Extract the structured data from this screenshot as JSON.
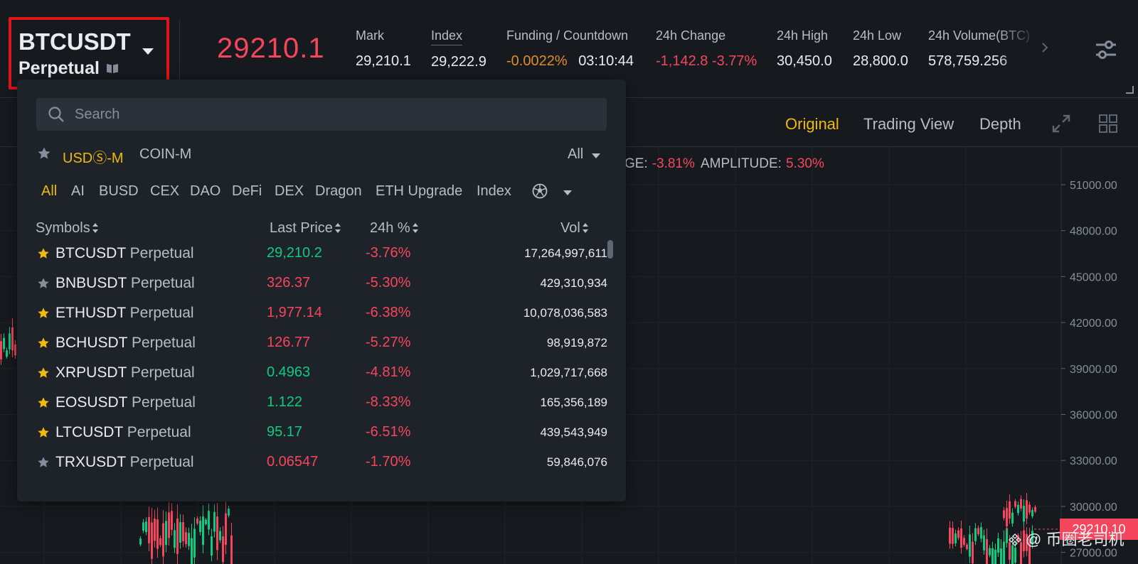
{
  "header": {
    "symbol": "BTCUSDT",
    "contract_type": "Perpetual",
    "last_price": "29210.1",
    "stats": [
      {
        "label": "Mark",
        "value": "29,210.1"
      },
      {
        "label": "Index",
        "value": "29,222.9"
      },
      {
        "label": "Funding / Countdown",
        "rate": "-0.0022%",
        "countdown": "03:10:44"
      },
      {
        "label": "24h Change",
        "value": "-1,142.8 -3.77%"
      },
      {
        "label": "24h High",
        "value": "30,450.0"
      },
      {
        "label": "24h Low",
        "value": "28,800.0"
      },
      {
        "label": "24h Volume(BTC)",
        "value": "578,759.256"
      }
    ]
  },
  "chart_tabs": {
    "original": "Original",
    "trading_view": "Trading View",
    "depth": "Depth"
  },
  "chart_info": {
    "change_label": "GE:",
    "change_value": "-3.81%",
    "amplitude_label": "AMPLITUDE:",
    "amplitude_value": "5.30%"
  },
  "chart_data": {
    "type": "candlestick",
    "y_ticks": [
      "51000.00",
      "48000.00",
      "45000.00",
      "42000.00",
      "39000.00",
      "36000.00",
      "33000.00",
      "30000.00",
      "27000.00"
    ],
    "current_price": "29210.10"
  },
  "watermark": "@ 币圈老司机",
  "dropdown": {
    "search_placeholder": "Search",
    "market_tabs": [
      "USDⓈ-M",
      "COIN-M"
    ],
    "filter": "All",
    "categories": [
      "All",
      "AI",
      "BUSD",
      "CEX",
      "DAO",
      "DeFi",
      "DEX",
      "Dragon",
      "ETH Upgrade",
      "Index"
    ],
    "columns": {
      "symbols": "Symbols",
      "last_price": "Last Price",
      "change": "24h %",
      "vol": "Vol"
    },
    "rows": [
      {
        "symbol": "BTCUSDT",
        "type": "Perpetual",
        "price": "29,210.2",
        "change": "-3.76%",
        "vol": "17,264,997,611",
        "fav": true,
        "up": true
      },
      {
        "symbol": "BNBUSDT",
        "type": "Perpetual",
        "price": "326.37",
        "change": "-5.30%",
        "vol": "429,310,934",
        "fav": false,
        "up": false
      },
      {
        "symbol": "ETHUSDT",
        "type": "Perpetual",
        "price": "1,977.14",
        "change": "-6.38%",
        "vol": "10,078,036,583",
        "fav": true,
        "up": false
      },
      {
        "symbol": "BCHUSDT",
        "type": "Perpetual",
        "price": "126.77",
        "change": "-5.27%",
        "vol": "98,919,872",
        "fav": true,
        "up": false
      },
      {
        "symbol": "XRPUSDT",
        "type": "Perpetual",
        "price": "0.4963",
        "change": "-4.81%",
        "vol": "1,029,717,668",
        "fav": true,
        "up": true
      },
      {
        "symbol": "EOSUSDT",
        "type": "Perpetual",
        "price": "1.122",
        "change": "-8.33%",
        "vol": "165,356,189",
        "fav": true,
        "up": true
      },
      {
        "symbol": "LTCUSDT",
        "type": "Perpetual",
        "price": "95.17",
        "change": "-6.51%",
        "vol": "439,543,949",
        "fav": true,
        "up": true
      },
      {
        "symbol": "TRXUSDT",
        "type": "Perpetual",
        "price": "0.06547",
        "change": "-1.70%",
        "vol": "59,846,076",
        "fav": false,
        "up": false
      }
    ]
  },
  "colors": {
    "accent": "#f0b90b",
    "up": "#0ecb81",
    "down": "#f6465d",
    "highlight_border": "#e0151b"
  }
}
